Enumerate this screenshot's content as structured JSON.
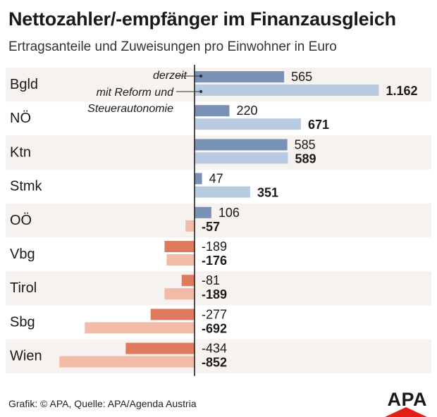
{
  "title": "Nettozahler/-empfänger im Finanzausgleich",
  "subtitle": "Ertragsanteile und Zuweisungen pro Einwohner in Euro",
  "footer": "Grafik: © APA, Quelle: APA/Agenda Austria",
  "logo": "APA",
  "colors": {
    "current_positive": "#7891b4",
    "reform_positive": "#b9cbe0",
    "current_negative": "#df7a5d",
    "reform_negative": "#f2bba9",
    "row_shade": "#f6f2ef",
    "axis": "#222222",
    "logo_red": "#e32017"
  },
  "chart_data": {
    "type": "bar",
    "orientation": "horizontal",
    "title": "Nettozahler/-empfänger im Finanzausgleich",
    "subtitle": "Ertragsanteile und Zuweisungen pro Einwohner in Euro",
    "categories": [
      "Bgld",
      "NÖ",
      "Ktn",
      "Stmk",
      "OÖ",
      "Vbg",
      "Tirol",
      "Sbg",
      "Wien"
    ],
    "series": [
      {
        "name": "derzeit",
        "values": [
          565,
          220,
          585,
          47,
          106,
          -189,
          -81,
          -277,
          -434
        ]
      },
      {
        "name": "mit Reform und Steuerautonomie",
        "values": [
          1162,
          671,
          589,
          351,
          -57,
          -176,
          -189,
          -692,
          -852
        ]
      }
    ],
    "value_labels": {
      "derzeit": [
        "565",
        "220",
        "585",
        "47",
        "106",
        "-189",
        "-81",
        "-277",
        "-434"
      ],
      "mit Reform und Steuerautonomie": [
        "1.162",
        "671",
        "589",
        "351",
        "-57",
        "-176",
        "-189",
        "-692",
        "-852"
      ]
    },
    "legend": {
      "position": "inline-first-row",
      "entries": [
        "derzeit",
        "mit Reform und Steuerautonomie"
      ]
    },
    "xlim": [
      -900,
      1200
    ],
    "grid": false
  }
}
